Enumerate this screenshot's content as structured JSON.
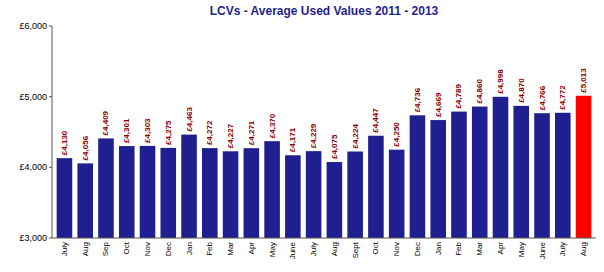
{
  "chart_data": {
    "type": "bar",
    "title": "LCVs - Average Used Values 2011 - 2013",
    "categories": [
      "July",
      "Aug",
      "Sep",
      "Oct",
      "Nov",
      "Dec",
      "Jan",
      "Feb",
      "Mar",
      "Apr",
      "May",
      "June",
      "July",
      "Aug",
      "Sept",
      "Oct",
      "Nov",
      "Dec",
      "Jan",
      "Feb",
      "Mar",
      "Apr",
      "May",
      "June",
      "July",
      "Aug"
    ],
    "values": [
      4130,
      4056,
      4409,
      4301,
      4303,
      4275,
      4463,
      4272,
      4227,
      4271,
      4370,
      4171,
      4229,
      4075,
      4224,
      4447,
      4250,
      4736,
      4669,
      4789,
      4860,
      4998,
      4870,
      4766,
      4772,
      5013
    ],
    "value_labels": [
      "£4,130",
      "£4,056",
      "£4,409",
      "£4,301",
      "£4,303",
      "£4,275",
      "£4,463",
      "£4,272",
      "£4,227",
      "£4,271",
      "£4,370",
      "£4,171",
      "£4,229",
      "£4,075",
      "£4,224",
      "£4,447",
      "£4,250",
      "£4,736",
      "£4,669",
      "£4,789",
      "£4,860",
      "£4,998",
      "£4,870",
      "£4,766",
      "£4,772",
      "£5,013"
    ],
    "colors": [
      "#1F1F8F",
      "#1F1F8F",
      "#1F1F8F",
      "#1F1F8F",
      "#1F1F8F",
      "#1F1F8F",
      "#1F1F8F",
      "#1F1F8F",
      "#1F1F8F",
      "#1F1F8F",
      "#1F1F8F",
      "#1F1F8F",
      "#1F1F8F",
      "#1F1F8F",
      "#1F1F8F",
      "#1F1F8F",
      "#1F1F8F",
      "#1F1F8F",
      "#1F1F8F",
      "#1F1F8F",
      "#1F1F8F",
      "#1F1F8F",
      "#1F1F8F",
      "#1F1F8F",
      "#1F1F8F",
      "#FF0000"
    ],
    "ylim": [
      3000,
      6000
    ],
    "yticks": [
      {
        "value": 3000,
        "label": "£3,000"
      },
      {
        "value": 4000,
        "label": "£4,000"
      },
      {
        "value": 5000,
        "label": "£5,000"
      },
      {
        "value": 6000,
        "label": "£6,000"
      }
    ],
    "data_labels": true,
    "grid": false
  }
}
